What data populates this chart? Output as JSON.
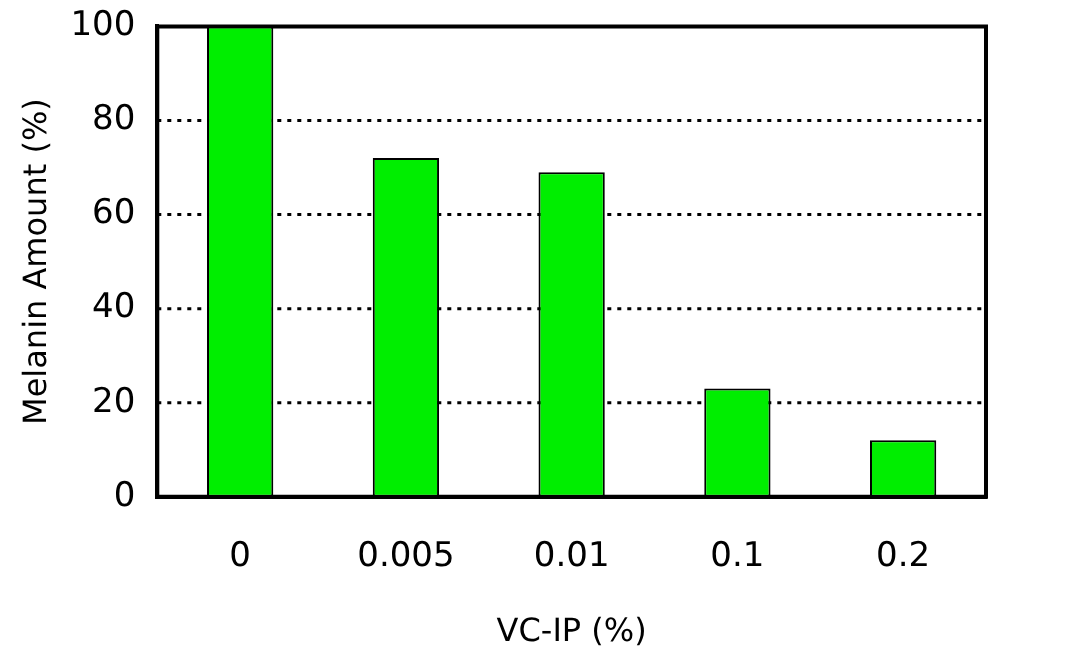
{
  "chart_data": {
    "type": "bar",
    "xlabel": "VC-IP (%)",
    "ylabel": "Melanin Amount (%)",
    "categories": [
      "0",
      "0.005",
      "0.01",
      "0.1",
      "0.2"
    ],
    "values": [
      100,
      72,
      69,
      23,
      12
    ],
    "color": "#00ee00",
    "ylim": [
      0,
      100
    ],
    "yticks": [
      0,
      20,
      40,
      60,
      80,
      100
    ],
    "grid": "y",
    "legend": false
  }
}
